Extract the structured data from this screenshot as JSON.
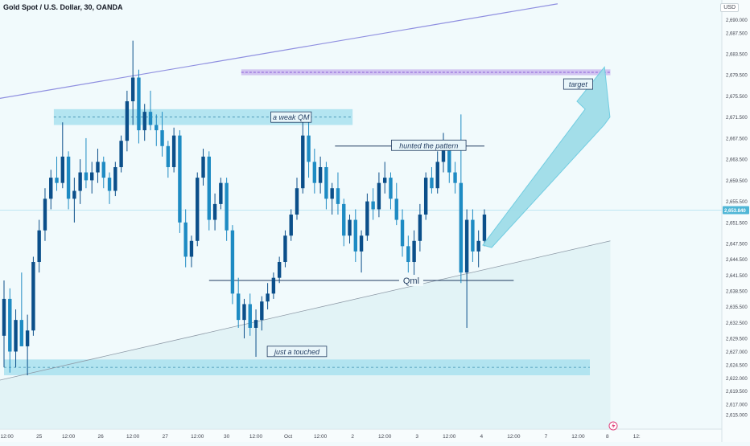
{
  "header": {
    "symbol_title": "Gold Spot / U.S. Dollar, 30, OANDA",
    "currency": "USD"
  },
  "colors": {
    "background": "#f1fafc",
    "up_candle": "#0b4f8a",
    "down_candle": "#1e8bc3",
    "zone_fill": "#a9e1ee",
    "trend_line": "#8f8fe0",
    "price_line": "#bfe7f3",
    "price_badge": "#4fb6d6",
    "arrow_fill": "#9fdde9"
  },
  "chart_data": {
    "type": "candlestick",
    "ylim": [
      2613.5,
      2692.5
    ],
    "y_ticks": [
      "2,690.000",
      "2,687.500",
      "2,683.500",
      "2,679.500",
      "2,675.500",
      "2,671.500",
      "2,667.500",
      "2,663.500",
      "2,659.500",
      "2,655.500",
      "2,651.500",
      "2,647.500",
      "2,644.500",
      "2,641.500",
      "2,638.500",
      "2,635.500",
      "2,632.500",
      "2,629.500",
      "2,627.000",
      "2,624.500",
      "2,622.000",
      "2,619.500",
      "2,617.000",
      "2,615.000"
    ],
    "y_tick_values": [
      2690,
      2687.5,
      2683.5,
      2679.5,
      2675.5,
      2671.5,
      2667.5,
      2663.5,
      2659.5,
      2655.5,
      2651.5,
      2647.5,
      2644.5,
      2641.5,
      2638.5,
      2635.5,
      2632.5,
      2629.5,
      2627,
      2624.5,
      2622,
      2619.5,
      2617,
      2615
    ],
    "x_ticks": [
      "12:00",
      "25",
      "12:00",
      "26",
      "12:00",
      "27",
      "12:00",
      "30",
      "12:00",
      "Oct",
      "12:00",
      "2",
      "12:00",
      "3",
      "12:00",
      "4",
      "12:00",
      "7",
      "12:00",
      "8",
      "12:"
    ],
    "x_tick_index": [
      0.5,
      6,
      11,
      16.5,
      22,
      27.5,
      33,
      38,
      43,
      48.5,
      54,
      59.5,
      65,
      70.5,
      76,
      81.5,
      87,
      92.5,
      98,
      103,
      108
    ],
    "current_price": 2653.84,
    "current_price_label": "2,653.840",
    "ohlc": [
      [
        2630.0,
        2640.5,
        2624.0,
        2637.0
      ],
      [
        2637.0,
        2639.0,
        2623.0,
        2627.0
      ],
      [
        2627.0,
        2635.0,
        2624.0,
        2633.0
      ],
      [
        2633.0,
        2642.0,
        2628.0,
        2628.0
      ],
      [
        2628.0,
        2634.0,
        2622.5,
        2631.0
      ],
      [
        2631.0,
        2645.0,
        2630.0,
        2644.0
      ],
      [
        2644.0,
        2652.0,
        2642.0,
        2650.0
      ],
      [
        2650.0,
        2658.0,
        2648.0,
        2656.0
      ],
      [
        2656.0,
        2661.5,
        2654.0,
        2660.0
      ],
      [
        2660.0,
        2664.0,
        2657.5,
        2659.0
      ],
      [
        2659.0,
        2670.5,
        2658.0,
        2664.0
      ],
      [
        2664.0,
        2665.0,
        2654.0,
        2656.0
      ],
      [
        2656.0,
        2660.0,
        2651.5,
        2657.5
      ],
      [
        2657.5,
        2663.5,
        2655.0,
        2661.0
      ],
      [
        2661.0,
        2667.5,
        2658.0,
        2659.5
      ],
      [
        2659.5,
        2663.0,
        2657.0,
        2661.0
      ],
      [
        2661.0,
        2665.5,
        2659.0,
        2663.0
      ],
      [
        2663.0,
        2664.0,
        2658.0,
        2660.0
      ],
      [
        2660.0,
        2661.0,
        2655.0,
        2657.5
      ],
      [
        2657.5,
        2663.0,
        2656.5,
        2662.0
      ],
      [
        2662.0,
        2668.0,
        2661.0,
        2667.0
      ],
      [
        2667.0,
        2676.5,
        2665.0,
        2674.5
      ],
      [
        2674.5,
        2686.0,
        2670.0,
        2679.0
      ],
      [
        2679.0,
        2680.5,
        2666.5,
        2669.0
      ],
      [
        2669.0,
        2674.0,
        2667.0,
        2672.5
      ],
      [
        2672.5,
        2676.5,
        2669.0,
        2670.0
      ],
      [
        2670.0,
        2672.0,
        2666.0,
        2669.0
      ],
      [
        2669.0,
        2672.5,
        2664.0,
        2666.0
      ],
      [
        2666.0,
        2667.0,
        2660.0,
        2662.0
      ],
      [
        2662.0,
        2669.5,
        2661.0,
        2668.0
      ],
      [
        2668.0,
        2669.0,
        2649.5,
        2651.5
      ],
      [
        2651.5,
        2654.0,
        2643.0,
        2645.0
      ],
      [
        2645.0,
        2649.0,
        2643.0,
        2648.0
      ],
      [
        2648.0,
        2661.0,
        2647.0,
        2660.0
      ],
      [
        2660.0,
        2665.5,
        2658.5,
        2664.0
      ],
      [
        2664.0,
        2665.0,
        2650.0,
        2652.0
      ],
      [
        2652.0,
        2657.0,
        2650.0,
        2655.0
      ],
      [
        2655.0,
        2660.0,
        2654.0,
        2659.0
      ],
      [
        2659.0,
        2660.0,
        2648.0,
        2650.0
      ],
      [
        2650.0,
        2651.0,
        2636.0,
        2638.0
      ],
      [
        2638.0,
        2641.0,
        2631.5,
        2633.0
      ],
      [
        2633.0,
        2637.0,
        2629.5,
        2636.0
      ],
      [
        2636.0,
        2638.0,
        2630.0,
        2631.5
      ],
      [
        2631.5,
        2635.0,
        2626.0,
        2633.0
      ],
      [
        2633.0,
        2637.5,
        2631.0,
        2636.5
      ],
      [
        2636.5,
        2640.0,
        2635.0,
        2638.0
      ],
      [
        2638.0,
        2642.0,
        2637.0,
        2641.0
      ],
      [
        2641.0,
        2645.0,
        2640.0,
        2644.0
      ],
      [
        2644.0,
        2650.0,
        2643.0,
        2649.0
      ],
      [
        2649.0,
        2654.0,
        2648.0,
        2653.0
      ],
      [
        2653.0,
        2660.0,
        2652.0,
        2658.0
      ],
      [
        2658.0,
        2672.5,
        2657.0,
        2668.0
      ],
      [
        2668.0,
        2672.0,
        2660.0,
        2663.0
      ],
      [
        2663.0,
        2665.5,
        2657.0,
        2659.0
      ],
      [
        2659.0,
        2664.0,
        2657.0,
        2662.0
      ],
      [
        2662.0,
        2663.0,
        2654.0,
        2656.0
      ],
      [
        2656.0,
        2659.0,
        2653.0,
        2658.0
      ],
      [
        2658.0,
        2661.0,
        2653.0,
        2655.0
      ],
      [
        2655.0,
        2656.0,
        2647.0,
        2649.0
      ],
      [
        2649.0,
        2653.0,
        2647.5,
        2652.0
      ],
      [
        2652.0,
        2654.0,
        2644.0,
        2646.0
      ],
      [
        2646.0,
        2650.0,
        2642.0,
        2649.0
      ],
      [
        2649.0,
        2657.0,
        2648.0,
        2655.5
      ],
      [
        2655.5,
        2658.0,
        2652.0,
        2654.0
      ],
      [
        2654.0,
        2661.0,
        2652.5,
        2659.0
      ],
      [
        2659.0,
        2663.0,
        2657.0,
        2660.0
      ],
      [
        2660.0,
        2661.0,
        2654.0,
        2656.0
      ],
      [
        2656.0,
        2659.0,
        2651.0,
        2652.0
      ],
      [
        2652.0,
        2654.0,
        2645.0,
        2647.0
      ],
      [
        2647.0,
        2649.0,
        2642.0,
        2644.0
      ],
      [
        2644.0,
        2650.0,
        2640.0,
        2648.0
      ],
      [
        2648.0,
        2655.0,
        2646.0,
        2653.0
      ],
      [
        2653.0,
        2661.0,
        2652.0,
        2660.0
      ],
      [
        2660.0,
        2662.0,
        2657.0,
        2658.0
      ],
      [
        2658.0,
        2665.0,
        2657.0,
        2663.0
      ],
      [
        2663.0,
        2668.5,
        2661.0,
        2666.0
      ],
      [
        2666.0,
        2667.0,
        2659.0,
        2661.0
      ],
      [
        2661.0,
        2663.0,
        2657.0,
        2659.0
      ],
      [
        2659.0,
        2672.0,
        2640.0,
        2642.0
      ],
      [
        2642.0,
        2654.0,
        2631.5,
        2652.0
      ],
      [
        2652.0,
        2654.0,
        2644.0,
        2646.0
      ],
      [
        2646.0,
        2650.0,
        2643.0,
        2648.0
      ],
      [
        2648.0,
        2654.0,
        2647.0,
        2653.0
      ]
    ],
    "zones": [
      {
        "name": "weak-qm-zone",
        "y0": 2670.0,
        "y1": 2673.0,
        "i0": 8.5,
        "i1": 59.5,
        "label": "a weak QM"
      },
      {
        "name": "target-zone",
        "y0": 2679.6,
        "y1": 2680.4,
        "i0": 40.5,
        "i1": 103.5,
        "label": "target"
      },
      {
        "name": "support-zone",
        "y0": 2622.5,
        "y1": 2625.5,
        "i0": 0,
        "i1": 100,
        "label": "just a touched"
      }
    ],
    "lines": [
      {
        "name": "qml-line",
        "i0": 35,
        "i1": 87,
        "y": 2640.5,
        "label": "Qml"
      },
      {
        "name": "hunted-line",
        "i0": 56.5,
        "i1": 82,
        "y": 2666.0,
        "label": "hunted the pattern"
      }
    ],
    "trend_lines": [
      {
        "name": "upper-channel-line",
        "i0": -1,
        "y0": 2675.0,
        "i1": 94.5,
        "y1": 2693.0
      },
      {
        "name": "lower-trendline",
        "i0": -1,
        "y0": 2621.5,
        "i1": 103.5,
        "y1": 2648.0
      }
    ]
  }
}
